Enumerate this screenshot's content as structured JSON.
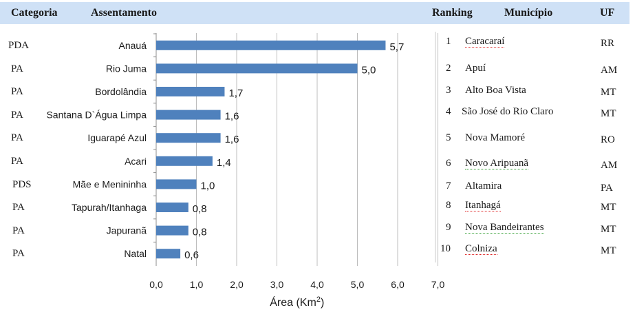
{
  "header": {
    "categoria": "Categoria",
    "assentamento": "Assentamento",
    "ranking": "Ranking",
    "municipio": "Município",
    "uf": "UF"
  },
  "categories": [
    "PDA",
    "PA",
    "PA",
    "PA",
    "PA",
    "PA",
    "PDS",
    "PA",
    "PA",
    "PA"
  ],
  "ranking": [
    {
      "rank": "1",
      "municipio": "Caracaraí",
      "uf": "RR"
    },
    {
      "rank": "2",
      "municipio": "Apuí",
      "uf": "AM"
    },
    {
      "rank": "3",
      "municipio": "Alto Boa Vista",
      "uf": "MT"
    },
    {
      "rank": "4",
      "municipio": "São José do Rio Claro",
      "uf": "MT"
    },
    {
      "rank": "5",
      "municipio": "Nova Mamoré",
      "uf": "RO"
    },
    {
      "rank": "6",
      "municipio": "Novo Aripuanã",
      "uf": "AM"
    },
    {
      "rank": "7",
      "municipio": "Altamira",
      "uf": "PA"
    },
    {
      "rank": "8",
      "municipio": "Itanhagá",
      "uf": "MT"
    },
    {
      "rank": "9",
      "municipio": "Nova Bandeirantes",
      "uf": "MT"
    },
    {
      "rank": "10",
      "municipio": "Colniza",
      "uf": "MT"
    }
  ],
  "chart_data": {
    "type": "bar",
    "orientation": "horizontal",
    "categories": [
      "Anauá",
      "Rio Juma",
      "Bordolândia",
      "Santana D`Água Limpa",
      "Iguarapé Azul",
      "Acari",
      "Mãe e Menininha",
      "Tapurah/Itanhaga",
      "Japuranã",
      "Natal"
    ],
    "values": [
      5.7,
      5.0,
      1.7,
      1.6,
      1.6,
      1.4,
      1.0,
      0.8,
      0.8,
      0.6
    ],
    "value_labels": [
      "5,7",
      "5,0",
      "1,7",
      "1,6",
      "1,6",
      "1,4",
      "1,0",
      "0,8",
      "0,8",
      "0,6"
    ],
    "xlabel_main": "Área (Km",
    "xlabel_sup": "2",
    "xlabel_end": ")",
    "xlim": [
      0,
      7
    ],
    "xticks": [
      "0,0",
      "1,0",
      "2,0",
      "3,0",
      "4,0",
      "5,0",
      "6,0",
      "7,0"
    ],
    "grid": true,
    "bar_color": "#4f81bd"
  }
}
